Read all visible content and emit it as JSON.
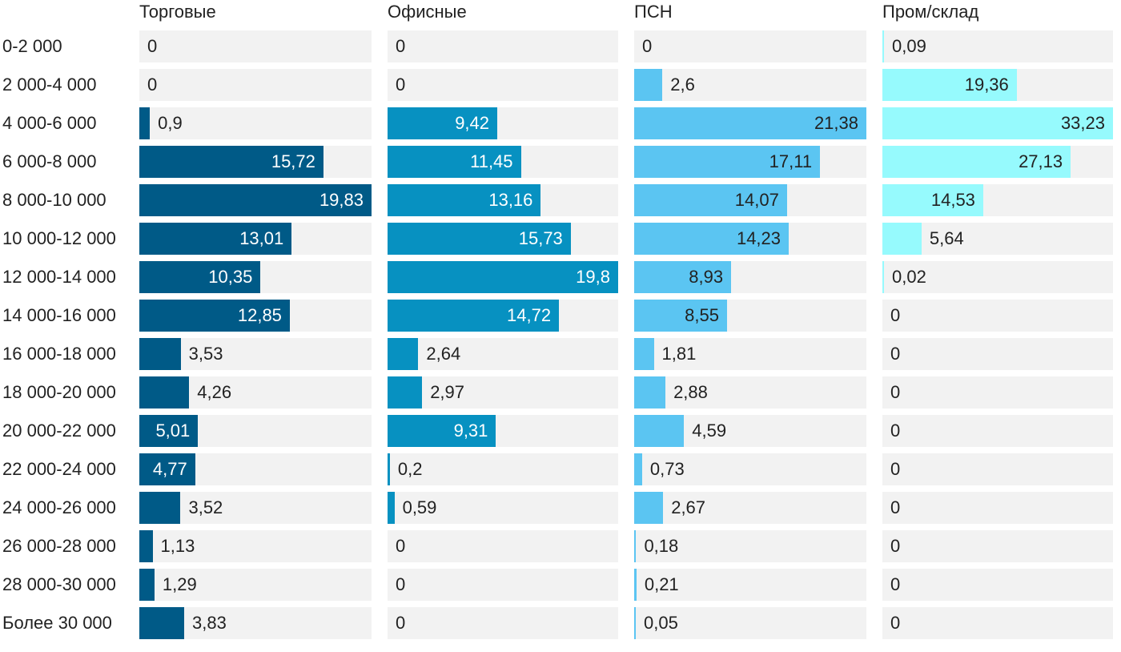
{
  "chart_data": {
    "type": "bar",
    "orientation": "horizontal",
    "layout": "small-multiples",
    "categories": [
      "0-2 000",
      "2 000-4 000",
      "4 000-6 000",
      "6 000-8 000",
      "8 000-10 000",
      "10 000-12 000",
      "12 000-14 000",
      "14 000-16 000",
      "16 000-18 000",
      "18 000-20 000",
      "20 000-22 000",
      "22 000-24 000",
      "24 000-26 000",
      "26 000-28 000",
      "28 000-30 000",
      "Более 30 000"
    ],
    "series": [
      {
        "name": "Торговые",
        "color": "#005a87",
        "label_color": "#ffffff",
        "max": 19.83,
        "values": [
          0,
          0,
          0.9,
          15.72,
          19.83,
          13.01,
          10.35,
          12.85,
          3.53,
          4.26,
          5.01,
          4.77,
          3.52,
          1.13,
          1.29,
          3.83
        ],
        "labels": [
          "0",
          "0",
          "0,9",
          "15,72",
          "19,83",
          "13,01",
          "10,35",
          "12,85",
          "3,53",
          "4,26",
          "5,01",
          "4,77",
          "3,52",
          "1,13",
          "1,29",
          "3,83"
        ]
      },
      {
        "name": "Офисные",
        "color": "#0791c1",
        "label_color": "#ffffff",
        "max": 19.8,
        "values": [
          0,
          0,
          9.42,
          11.45,
          13.16,
          15.73,
          19.8,
          14.72,
          2.64,
          2.97,
          9.31,
          0.2,
          0.59,
          0,
          0,
          0
        ],
        "labels": [
          "0",
          "0",
          "9,42",
          "11,45",
          "13,16",
          "15,73",
          "19,8",
          "14,72",
          "2,64",
          "2,97",
          "9,31",
          "0,2",
          "0,59",
          "0",
          "0",
          "0"
        ]
      },
      {
        "name": "ПСН",
        "color": "#5bc5f2",
        "label_color": "#222222",
        "max": 21.38,
        "values": [
          0,
          2.6,
          21.38,
          17.11,
          14.07,
          14.23,
          8.93,
          8.55,
          1.81,
          2.88,
          4.59,
          0.73,
          2.67,
          0.18,
          0.21,
          0.05
        ],
        "labels": [
          "0",
          "2,6",
          "21,38",
          "17,11",
          "14,07",
          "14,23",
          "8,93",
          "8,55",
          "1,81",
          "2,88",
          "4,59",
          "0,73",
          "2,67",
          "0,18",
          "0,21",
          "0,05"
        ]
      },
      {
        "name": "Пром/склад",
        "color": "#96fafd",
        "label_color": "#222222",
        "max": 33.23,
        "values": [
          0.09,
          19.36,
          33.23,
          27.13,
          14.53,
          5.64,
          0.02,
          0,
          0,
          0,
          0,
          0,
          0,
          0,
          0,
          0
        ],
        "labels": [
          "0,09",
          "19,36",
          "33,23",
          "27,13",
          "14,53",
          "5,64",
          "0,02",
          "0",
          "0",
          "0",
          "0",
          "0",
          "0",
          "0",
          "0",
          "0"
        ]
      }
    ]
  }
}
